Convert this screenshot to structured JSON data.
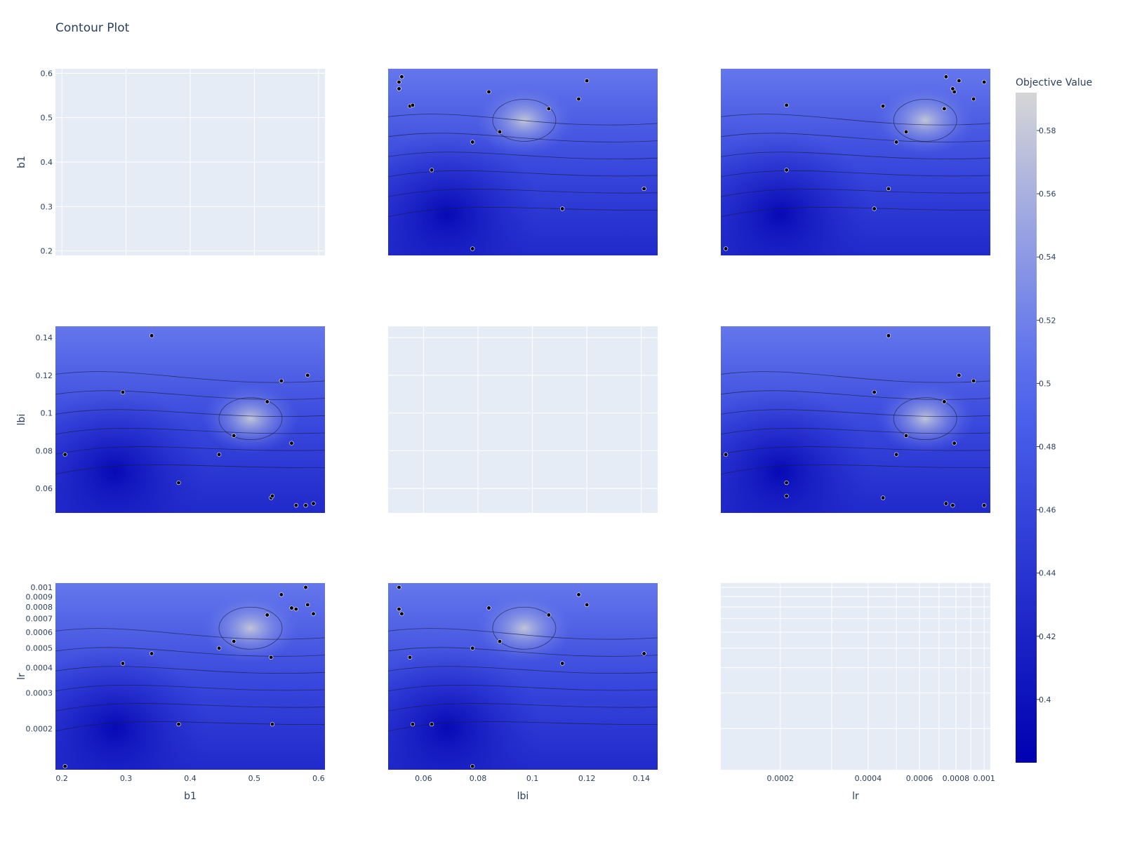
{
  "title": "Contour Plot",
  "colors": {
    "plot_bg": "#e5ecf6",
    "grid": "#ffffff",
    "low": "#0000b0",
    "mid": "#4f66f0",
    "high": "#d6d6d6",
    "points": "#000000"
  },
  "chart_data": {
    "type": "contour",
    "params": [
      {
        "name": "b1",
        "ticks": [
          "0.2",
          "0.3",
          "0.4",
          "0.5",
          "0.6"
        ],
        "tick_values": [
          0.2,
          0.3,
          0.4,
          0.5,
          0.6
        ],
        "range": [
          0.19,
          0.61
        ],
        "scale": "linear"
      },
      {
        "name": "lbi",
        "ticks": [
          "0.06",
          "0.08",
          "0.1",
          "0.12",
          "0.14"
        ],
        "tick_values": [
          0.06,
          0.08,
          0.1,
          0.12,
          0.14
        ],
        "range": [
          0.047,
          0.146
        ],
        "scale": "linear"
      },
      {
        "name": "lr",
        "ticks": [
          "0.0002",
          "0.0003",
          "0.0004",
          "0.0005",
          "0.0006",
          "0.0007",
          "0.0008",
          "0.0009",
          "0.001"
        ],
        "tick_values": [
          0.0002,
          0.0003,
          0.0004,
          0.0005,
          0.0006,
          0.0007,
          0.0008,
          0.0009,
          0.001
        ],
        "bottom_ticks": [
          "0.0002",
          "0.0004",
          "0.0006",
          "0.0008",
          "0.001"
        ],
        "bottom_tick_values": [
          0.0002,
          0.0004,
          0.0006,
          0.0008,
          0.001
        ],
        "range": [
          0.000125,
          0.00105
        ],
        "scale": "log"
      }
    ],
    "colorbar": {
      "title": "Objective Value",
      "ticks": [
        "0.4",
        "0.42",
        "0.44",
        "0.46",
        "0.48",
        "0.5",
        "0.52",
        "0.54",
        "0.56",
        "0.58"
      ],
      "tick_values": [
        0.4,
        0.42,
        0.44,
        0.46,
        0.48,
        0.5,
        0.52,
        0.54,
        0.56,
        0.58
      ],
      "range": [
        0.38,
        0.592
      ]
    },
    "trials": [
      {
        "b1": 0.205,
        "lbi": 0.078,
        "lr": 0.00013
      },
      {
        "b1": 0.295,
        "lbi": 0.111,
        "lr": 0.00042
      },
      {
        "b1": 0.34,
        "lbi": 0.141,
        "lr": 0.00047
      },
      {
        "b1": 0.382,
        "lbi": 0.063,
        "lr": 0.00021
      },
      {
        "b1": 0.445,
        "lbi": 0.078,
        "lr": 0.0005
      },
      {
        "b1": 0.468,
        "lbi": 0.088,
        "lr": 0.00054
      },
      {
        "b1": 0.52,
        "lbi": 0.106,
        "lr": 0.00073
      },
      {
        "b1": 0.526,
        "lbi": 0.055,
        "lr": 0.00045
      },
      {
        "b1": 0.528,
        "lbi": 0.056,
        "lr": 0.00021
      },
      {
        "b1": 0.542,
        "lbi": 0.117,
        "lr": 0.00092
      },
      {
        "b1": 0.558,
        "lbi": 0.084,
        "lr": 0.00079
      },
      {
        "b1": 0.565,
        "lbi": 0.051,
        "lr": 0.00078
      },
      {
        "b1": 0.58,
        "lbi": 0.051,
        "lr": 0.001
      },
      {
        "b1": 0.583,
        "lbi": 0.12,
        "lr": 0.00082
      },
      {
        "b1": 0.592,
        "lbi": 0.052,
        "lr": 0.00074
      }
    ]
  }
}
